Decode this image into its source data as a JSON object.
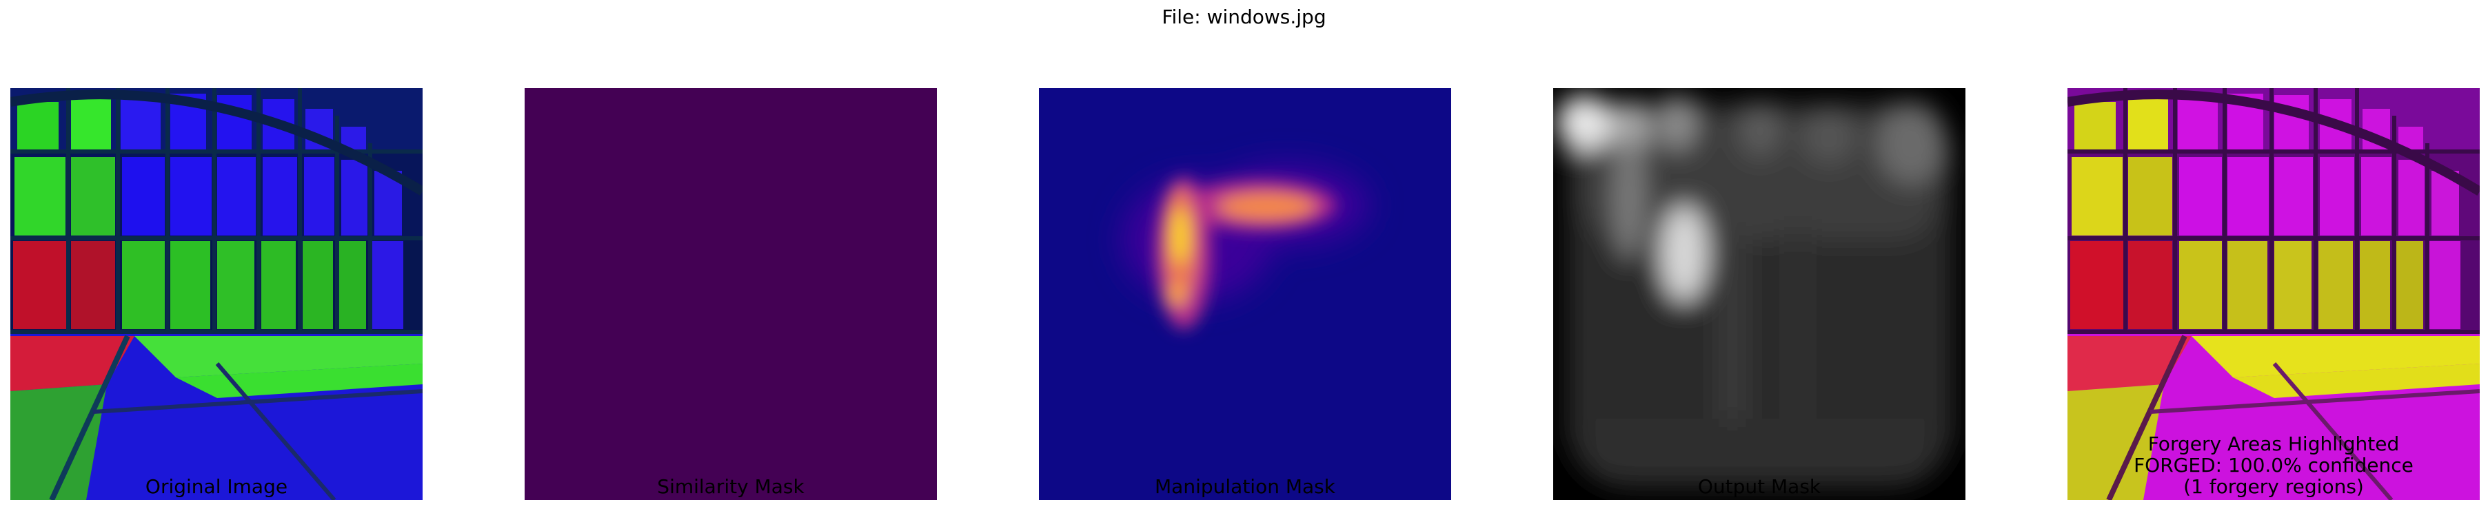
{
  "figure": {
    "title": "File: windows.jpg"
  },
  "panels": [
    {
      "title_lines": [
        "Original Image"
      ],
      "content": "photo of arched window wall with colored overlay"
    },
    {
      "title_lines": [
        "Similarity Mask"
      ],
      "content": "uniform heatmap"
    },
    {
      "title_lines": [
        "Manipulation Mask"
      ],
      "content": "plasma heatmap"
    },
    {
      "title_lines": [
        "Output Mask"
      ],
      "content": "grayscale mask"
    },
    {
      "title_lines": [
        "Forgery Areas Highlighted",
        "FORGED: 100.0% confidence",
        "(1 forgery regions)"
      ],
      "content": "highlighted overlay"
    }
  ],
  "colors": {
    "similarity_fill": "#440154",
    "plasma_background": "#0d0887",
    "plasma_mid": "#9c179e",
    "plasma_hot": "#f0f921",
    "overlay_red": "#d0102a",
    "overlay_green": "#34e019",
    "overlay_blue": "#1a10f0",
    "highlight_magenta": "#d010e0",
    "highlight_yellow": "#e6e41a"
  }
}
